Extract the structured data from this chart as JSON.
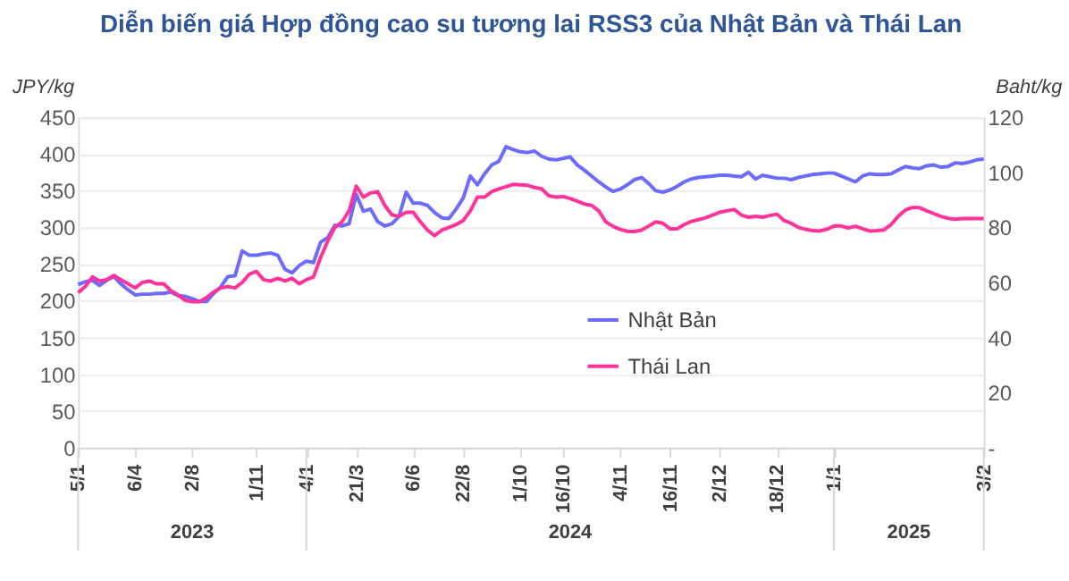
{
  "chart_data": {
    "type": "line",
    "title": "Diễn biến giá Hợp đồng cao su tương lai RSS3 của Nhật Bản và Thái Lan",
    "ylabel": "JPY/kg",
    "y2label": "Baht/kg",
    "categories": [
      "5/1",
      null,
      null,
      null,
      null,
      null,
      null,
      null,
      "6/4",
      null,
      null,
      null,
      null,
      null,
      null,
      null,
      "2/8",
      null,
      null,
      null,
      null,
      null,
      null,
      null,
      null,
      "1/11",
      null,
      null,
      null,
      null,
      null,
      null,
      "4/1",
      null,
      null,
      null,
      null,
      null,
      null,
      "21/3",
      null,
      null,
      null,
      null,
      null,
      null,
      null,
      "6/6",
      null,
      null,
      null,
      null,
      null,
      null,
      "22/8",
      null,
      null,
      null,
      null,
      null,
      null,
      null,
      "1/10",
      null,
      null,
      null,
      null,
      null,
      "16/10",
      null,
      null,
      null,
      null,
      null,
      null,
      null,
      "4/11",
      null,
      null,
      null,
      null,
      null,
      null,
      "16/11",
      null,
      null,
      null,
      null,
      null,
      null,
      "2/12",
      null,
      null,
      null,
      null,
      null,
      null,
      null,
      "18/12",
      null,
      null,
      null,
      null,
      null,
      null,
      null,
      "1/1",
      null,
      null,
      null,
      null,
      null,
      null,
      null,
      null,
      null,
      null,
      null,
      null,
      null,
      null,
      null,
      null,
      null,
      null,
      null,
      null,
      "3/2"
    ],
    "series": [
      {
        "name": "Nhật Bản",
        "color": "#6b6bff",
        "axis": "y",
        "values": [
          222,
          226,
          228,
          221,
          228,
          233,
          223,
          215,
          208,
          209,
          209,
          210,
          210,
          212,
          207,
          206,
          203,
          199,
          199,
          210,
          219,
          233,
          234,
          268,
          262,
          262,
          264,
          265,
          262,
          243,
          238,
          248,
          254,
          252,
          280,
          286,
          303,
          302,
          305,
          345,
          322,
          325,
          308,
          302,
          305,
          315,
          348,
          333,
          333,
          330,
          320,
          313,
          312,
          325,
          340,
          370,
          358,
          373,
          385,
          390,
          410,
          406,
          403,
          402,
          404,
          397,
          393,
          392,
          394,
          396,
          385,
          378,
          370,
          362,
          355,
          349,
          352,
          358,
          365,
          368,
          360,
          350,
          348,
          351,
          356,
          362,
          366,
          368,
          369,
          370,
          371,
          371,
          370,
          369,
          375,
          366,
          371,
          369,
          367,
          367,
          365,
          368,
          370,
          372,
          373,
          374,
          374,
          370,
          366,
          362,
          370,
          373,
          372,
          372,
          373,
          378,
          383,
          381,
          380,
          384,
          385,
          382,
          383,
          388,
          387,
          389,
          392,
          393
        ]
      },
      {
        "name": "Thái Lan",
        "color": "#ff3399",
        "axis": "y2",
        "values": [
          56.3,
          58.5,
          62,
          60.5,
          61,
          62.5,
          61,
          59.5,
          58,
          60,
          60.5,
          59.5,
          59.5,
          57,
          55.5,
          53.5,
          53,
          53,
          54.5,
          56.5,
          58,
          58.5,
          58,
          60,
          63,
          64,
          61,
          60.5,
          61.5,
          60.5,
          61.5,
          59.5,
          61,
          62,
          69,
          75,
          80,
          82,
          86,
          95,
          91,
          92.5,
          93,
          88,
          84.5,
          84,
          85.5,
          85.5,
          82,
          79,
          77,
          79,
          80,
          81,
          82.5,
          86,
          91,
          91,
          93,
          94,
          94.8,
          95.6,
          95.5,
          95.3,
          94.5,
          94,
          91.5,
          91,
          91.2,
          90.5,
          89.5,
          88.5,
          88,
          86,
          82,
          80.4,
          79.3,
          78.6,
          78.5,
          79,
          80.5,
          82,
          81.5,
          79.5,
          79.5,
          81,
          82.2,
          82.8,
          83.5,
          84.5,
          85.5,
          86,
          86.5,
          84.5,
          83.7,
          84,
          83.7,
          84.3,
          84.8,
          82.5,
          81.5,
          80,
          79.3,
          78.8,
          78.7,
          79.3,
          80.5,
          80.5,
          79.8,
          80.4,
          79.5,
          78.7,
          78.8,
          79.1,
          81,
          84,
          86.3,
          87.2,
          87.2,
          86,
          85,
          84,
          83.3,
          83,
          83.2,
          83.2,
          83.2,
          83.2
        ]
      }
    ],
    "ylim": [
      0,
      450
    ],
    "yticks": [
      0,
      50,
      100,
      150,
      200,
      250,
      300,
      350,
      400,
      450
    ],
    "y2lim": [
      0,
      120
    ],
    "y2ticks": [
      {
        "value": 0,
        "label": "-"
      },
      20,
      40,
      60,
      80,
      100,
      120
    ],
    "annotations": [
      "2023",
      "2024",
      "2025"
    ],
    "grid": "y",
    "legend": "center",
    "marker": "none",
    "line_style": "solid"
  }
}
